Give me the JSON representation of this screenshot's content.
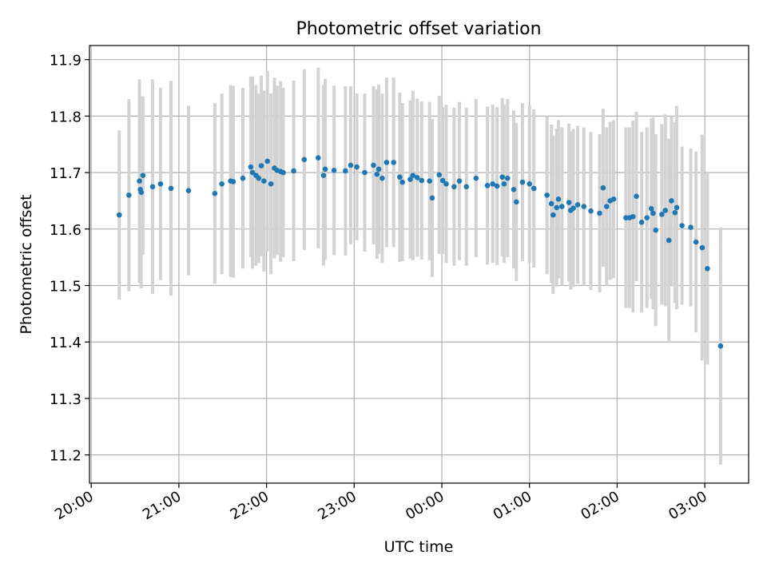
{
  "chart_data": {
    "type": "scatter",
    "title": "Photometric offset variation",
    "xlabel": "UTC time",
    "ylabel": "Photometric offset",
    "x_ticks": [
      "20:00",
      "21:00",
      "22:00",
      "23:00",
      "00:00",
      "01:00",
      "02:00",
      "03:00"
    ],
    "x_tick_hours": [
      0,
      1,
      2,
      3,
      4,
      5,
      6,
      7
    ],
    "xlim_hours": [
      -0.02,
      7.5
    ],
    "ylim": [
      11.15,
      11.925
    ],
    "y_ticks": [
      11.2,
      11.3,
      11.4,
      11.5,
      11.6,
      11.7,
      11.8,
      11.9
    ],
    "grid": true,
    "colors": {
      "point": "#1f77b4",
      "errorbar": "#d3d3d3",
      "grid": "#b0b0b0"
    },
    "series": [
      {
        "x_hours": [
          0.32,
          0.43,
          0.55,
          0.56,
          0.57,
          0.59,
          0.7,
          0.79,
          0.91,
          1.11,
          1.41,
          1.49,
          1.59,
          1.62,
          1.73,
          1.82,
          1.84,
          1.88,
          1.91,
          1.94,
          1.97,
          2.01,
          2.05,
          2.09,
          2.12,
          2.16,
          2.19,
          2.31,
          2.43,
          2.59,
          2.65,
          2.67,
          2.77,
          2.9,
          2.96,
          3.03,
          3.12,
          3.22,
          3.26,
          3.28,
          3.32,
          3.37,
          3.45,
          3.52,
          3.55,
          3.64,
          3.67,
          3.72,
          3.77,
          3.86,
          3.89,
          3.97,
          4.01,
          4.05,
          4.14,
          4.2,
          4.28,
          4.39,
          4.52,
          4.58,
          4.63,
          4.69,
          4.71,
          4.75,
          4.82,
          4.85,
          4.92,
          5.0,
          5.05,
          5.2,
          5.25,
          5.27,
          5.31,
          5.33,
          5.37,
          5.45,
          5.47,
          5.5,
          5.55,
          5.62,
          5.7,
          5.8,
          5.84,
          5.88,
          5.92,
          5.96,
          6.1,
          6.14,
          6.18,
          6.22,
          6.28,
          6.34,
          6.39,
          6.41,
          6.44,
          6.51,
          6.55,
          6.59,
          6.62,
          6.66,
          6.68,
          6.74,
          6.84,
          6.9,
          6.97,
          7.03,
          7.18
        ],
        "y": [
          11.625,
          11.66,
          11.685,
          11.67,
          11.665,
          11.695,
          11.675,
          11.68,
          11.672,
          11.668,
          11.663,
          11.68,
          11.685,
          11.684,
          11.69,
          11.71,
          11.7,
          11.695,
          11.69,
          11.712,
          11.685,
          11.72,
          11.68,
          11.708,
          11.704,
          11.702,
          11.7,
          11.703,
          11.723,
          11.726,
          11.695,
          11.706,
          11.704,
          11.703,
          11.713,
          11.71,
          11.7,
          11.713,
          11.697,
          11.706,
          11.69,
          11.718,
          11.718,
          11.692,
          11.683,
          11.688,
          11.695,
          11.691,
          11.686,
          11.685,
          11.655,
          11.696,
          11.686,
          11.68,
          11.675,
          11.685,
          11.675,
          11.69,
          11.677,
          11.68,
          11.676,
          11.692,
          11.68,
          11.69,
          11.67,
          11.648,
          11.683,
          11.68,
          11.672,
          11.66,
          11.645,
          11.625,
          11.638,
          11.653,
          11.64,
          11.647,
          11.633,
          11.637,
          11.643,
          11.64,
          11.632,
          11.628,
          11.673,
          11.64,
          11.65,
          11.653,
          11.62,
          11.62,
          11.622,
          11.658,
          11.612,
          11.62,
          11.636,
          11.628,
          11.598,
          11.626,
          11.633,
          11.58,
          11.65,
          11.629,
          11.638,
          11.606,
          11.603,
          11.577,
          11.567,
          11.53,
          11.393
        ],
        "yerr": [
          0.15,
          0.17,
          0.18,
          0.16,
          0.17,
          0.14,
          0.19,
          0.17,
          0.19,
          0.15,
          0.16,
          0.16,
          0.17,
          0.17,
          0.16,
          0.16,
          0.17,
          0.16,
          0.15,
          0.16,
          0.16,
          0.16,
          0.16,
          0.16,
          0.15,
          0.16,
          0.15,
          0.16,
          0.16,
          0.16,
          0.16,
          0.16,
          0.15,
          0.15,
          0.14,
          0.13,
          0.14,
          0.14,
          0.15,
          0.15,
          0.15,
          0.15,
          0.15,
          0.15,
          0.14,
          0.14,
          0.15,
          0.14,
          0.14,
          0.14,
          0.14,
          0.14,
          0.13,
          0.14,
          0.14,
          0.14,
          0.14,
          0.14,
          0.14,
          0.14,
          0.14,
          0.14,
          0.14,
          0.14,
          0.14,
          0.14,
          0.14,
          0.14,
          0.14,
          0.14,
          0.14,
          0.14,
          0.14,
          0.14,
          0.14,
          0.14,
          0.14,
          0.14,
          0.14,
          0.14,
          0.14,
          0.14,
          0.14,
          0.14,
          0.14,
          0.14,
          0.16,
          0.16,
          0.17,
          0.15,
          0.16,
          0.16,
          0.16,
          0.17,
          0.17,
          0.16,
          0.17,
          0.18,
          0.15,
          0.16,
          0.18,
          0.14,
          0.14,
          0.16,
          0.2,
          0.17,
          0.21
        ]
      }
    ]
  }
}
